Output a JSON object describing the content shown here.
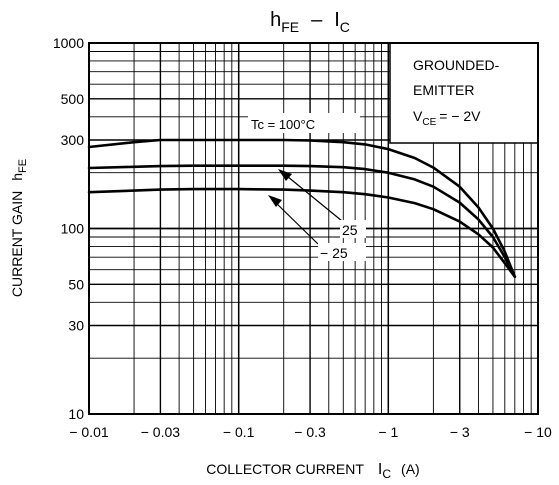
{
  "chart_data": {
    "type": "line",
    "title": {
      "main": "h",
      "main_sub": "FE",
      "sep": "–",
      "right": "I",
      "right_sub": "C"
    },
    "xlabel": {
      "text": "COLLECTOR CURRENT",
      "sym": "I",
      "sym_sub": "C",
      "unit": "(A)"
    },
    "ylabel": {
      "text": "CURRENT GAIN",
      "sym": "h",
      "sym_sub": "FE"
    },
    "x_scale": "log",
    "y_scale": "log",
    "xlim": [
      0.01,
      10
    ],
    "ylim": [
      10,
      1000
    ],
    "x_direction": "negative",
    "x_ticks": [
      {
        "v": 0.01,
        "label": "− 0.01"
      },
      {
        "v": 0.03,
        "label": "− 0.03"
      },
      {
        "v": 0.1,
        "label": "− 0.1"
      },
      {
        "v": 0.3,
        "label": "− 0.3"
      },
      {
        "v": 1,
        "label": "− 1"
      },
      {
        "v": 3,
        "label": "− 3"
      },
      {
        "v": 10,
        "label": "− 10"
      }
    ],
    "y_ticks": [
      {
        "v": 10,
        "label": "10"
      },
      {
        "v": 30,
        "label": "30"
      },
      {
        "v": 50,
        "label": "50"
      },
      {
        "v": 100,
        "label": "100"
      },
      {
        "v": 300,
        "label": "300"
      },
      {
        "v": 500,
        "label": "500"
      },
      {
        "v": 1000,
        "label": "1000"
      }
    ],
    "grid": true,
    "condition_box": {
      "line1": "GROUNDED-",
      "line2": "EMITTER",
      "vce_sym": "V",
      "vce_sub": "CE",
      "vce_val": "= − 2V"
    },
    "series": [
      {
        "name": "Tc = 100°C",
        "x": [
          0.01,
          0.02,
          0.03,
          0.05,
          0.1,
          0.2,
          0.3,
          0.5,
          0.7,
          1,
          1.5,
          2,
          3,
          4,
          5,
          6,
          7
        ],
        "y": [
          275,
          292,
          300,
          300,
          300,
          300,
          298,
          292,
          284,
          268,
          240,
          213,
          168,
          130,
          100,
          75,
          55
        ]
      },
      {
        "name": "25",
        "x": [
          0.01,
          0.02,
          0.03,
          0.05,
          0.1,
          0.2,
          0.3,
          0.5,
          0.7,
          1,
          1.5,
          2,
          3,
          4,
          5,
          6,
          7
        ],
        "y": [
          212,
          215,
          217,
          218,
          218,
          218,
          217,
          214,
          209,
          200,
          184,
          168,
          138,
          112,
          90,
          70,
          55
        ]
      },
      {
        "name": "− 25",
        "x": [
          0.01,
          0.02,
          0.03,
          0.05,
          0.1,
          0.2,
          0.3,
          0.5,
          0.7,
          1,
          1.5,
          2,
          3,
          4,
          5,
          6,
          7
        ],
        "y": [
          157,
          160,
          162,
          163,
          163,
          162,
          160,
          157,
          153,
          147,
          137,
          127,
          109,
          93,
          79,
          65,
          55
        ]
      }
    ]
  }
}
